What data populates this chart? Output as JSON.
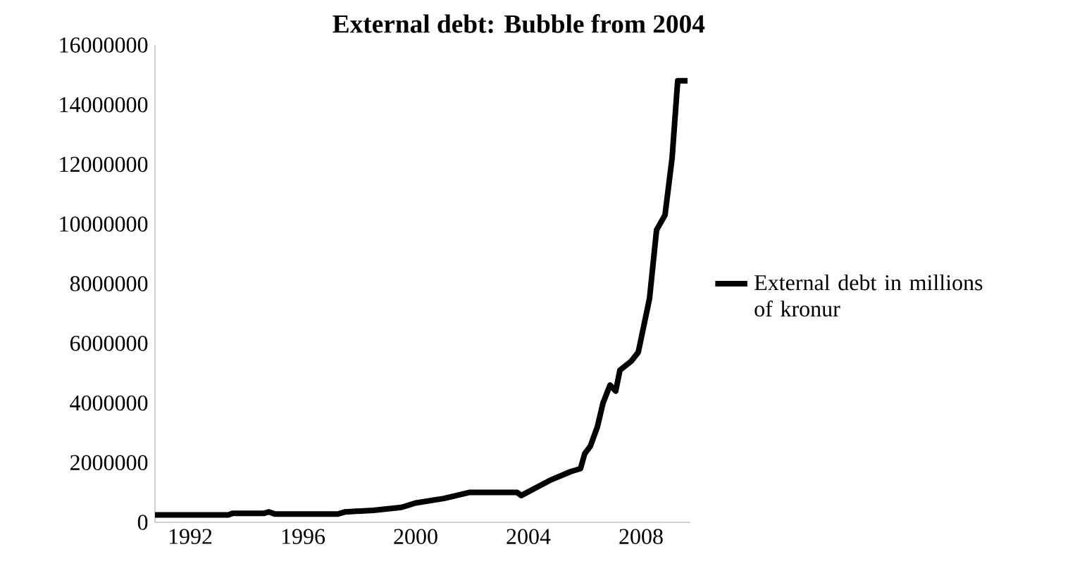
{
  "chart_data": {
    "type": "line",
    "title": "External debt: Bubble from 2004",
    "xlim": [
      1990.75,
      2009.75
    ],
    "xticks": [
      1992,
      1996,
      2000,
      2004,
      2008
    ],
    "ylim": [
      0,
      16000000
    ],
    "yticks": [
      0,
      2000000,
      4000000,
      6000000,
      8000000,
      10000000,
      12000000,
      14000000,
      16000000
    ],
    "legend": "right",
    "marker": "none",
    "line_style": "solid",
    "grid": false,
    "series": [
      {
        "name": "External debt in millions of kronur",
        "color": "#000000",
        "x": [
          1990.75,
          1993.35,
          1993.5,
          1994.6,
          1994.8,
          1995.0,
          1997.25,
          1997.5,
          1998.5,
          1999.5,
          2000.0,
          2001.0,
          2001.9,
          2003.6,
          2003.75,
          2004.75,
          2005.5,
          2005.85,
          2006.0,
          2006.2,
          2006.45,
          2006.65,
          2006.9,
          2007.1,
          2007.25,
          2007.65,
          2007.9,
          2008.3,
          2008.55,
          2008.85,
          2009.1,
          2009.3,
          2009.65
        ],
        "values": [
          250000,
          250000,
          300000,
          300000,
          350000,
          280000,
          280000,
          350000,
          400000,
          500000,
          650000,
          800000,
          1000000,
          1000000,
          900000,
          1400000,
          1700000,
          1800000,
          2300000,
          2550000,
          3200000,
          4000000,
          4600000,
          4400000,
          5100000,
          5400000,
          5700000,
          7500000,
          9800000,
          10300000,
          12200000,
          14800000,
          14800000
        ]
      }
    ]
  }
}
